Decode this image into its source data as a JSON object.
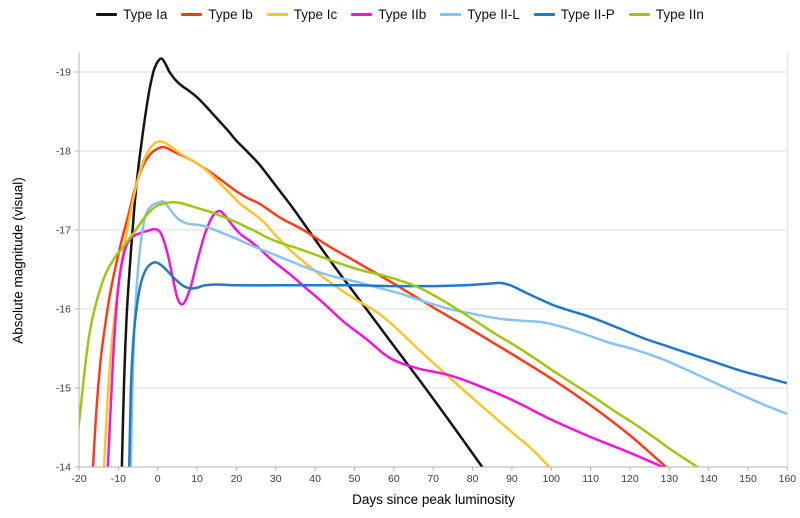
{
  "chart_data": {
    "type": "line",
    "title": "",
    "xlabel": "Days since peak luminosity",
    "ylabel": "Absolute magnitude (visual)",
    "xlim": [
      -20,
      160
    ],
    "ylim_mag_bottom_to_top": [
      -14,
      -19
    ],
    "x_ticks": [
      -20,
      -10,
      0,
      10,
      20,
      30,
      40,
      50,
      60,
      70,
      80,
      90,
      100,
      110,
      120,
      130,
      140,
      150,
      160
    ],
    "y_ticks": [
      -19,
      -18,
      -17,
      -16,
      -15,
      -14
    ],
    "grid": "horizontal-only",
    "legend_position": "top-center",
    "colors": {
      "grid": "#dcdcdc",
      "axis": "#b3b3b3",
      "tick_label": "#3c3c3c",
      "background": "#ffffff"
    },
    "series": [
      {
        "name": "Type Ia",
        "color": "#141414",
        "points": [
          [
            -9.2,
            -13.8
          ],
          [
            -8.6,
            -15
          ],
          [
            -7.9,
            -15.9
          ],
          [
            -7,
            -16.6
          ],
          [
            -6,
            -17.25
          ],
          [
            -5,
            -17.75
          ],
          [
            -4,
            -18.15
          ],
          [
            -3,
            -18.5
          ],
          [
            -2,
            -18.8
          ],
          [
            -1,
            -19.02
          ],
          [
            0,
            -19.13
          ],
          [
            1,
            -19.17
          ],
          [
            2,
            -19.1
          ],
          [
            3,
            -19.0
          ],
          [
            4.5,
            -18.9
          ],
          [
            6,
            -18.83
          ],
          [
            8,
            -18.76
          ],
          [
            10,
            -18.68
          ],
          [
            12,
            -18.58
          ],
          [
            14,
            -18.47
          ],
          [
            16,
            -18.36
          ],
          [
            18,
            -18.25
          ],
          [
            20,
            -18.13
          ],
          [
            23,
            -17.98
          ],
          [
            26,
            -17.82
          ],
          [
            30,
            -17.56
          ],
          [
            34,
            -17.3
          ],
          [
            38,
            -17.02
          ],
          [
            44,
            -16.6
          ],
          [
            50,
            -16.2
          ],
          [
            56,
            -15.8
          ],
          [
            62,
            -15.4
          ],
          [
            68,
            -15.0
          ],
          [
            75,
            -14.52
          ],
          [
            83.2,
            -13.95
          ]
        ]
      },
      {
        "name": "Type Ib",
        "color": "#fa3c1e",
        "points": [
          [
            -16.6,
            -13.85
          ],
          [
            -15.6,
            -14.7
          ],
          [
            -14.5,
            -15.35
          ],
          [
            -13.2,
            -15.85
          ],
          [
            -12,
            -16.22
          ],
          [
            -10.5,
            -16.58
          ],
          [
            -9,
            -16.9
          ],
          [
            -7.5,
            -17.18
          ],
          [
            -6,
            -17.48
          ],
          [
            -4.5,
            -17.72
          ],
          [
            -3,
            -17.88
          ],
          [
            -1.5,
            -17.98
          ],
          [
            0,
            -18.03
          ],
          [
            1.5,
            -18.05
          ],
          [
            3,
            -18.02
          ],
          [
            5,
            -17.97
          ],
          [
            8,
            -17.9
          ],
          [
            11,
            -17.81
          ],
          [
            14,
            -17.71
          ],
          [
            17,
            -17.6
          ],
          [
            20,
            -17.49
          ],
          [
            23,
            -17.4
          ],
          [
            26,
            -17.33
          ],
          [
            31,
            -17.16
          ],
          [
            37,
            -17.0
          ],
          [
            44,
            -16.78
          ],
          [
            50,
            -16.61
          ],
          [
            59,
            -16.35
          ],
          [
            70,
            -16.02
          ],
          [
            80,
            -15.73
          ],
          [
            90,
            -15.43
          ],
          [
            100,
            -15.12
          ],
          [
            110,
            -14.78
          ],
          [
            120,
            -14.4
          ],
          [
            130.3,
            -13.95
          ]
        ]
      },
      {
        "name": "Type Ic",
        "color": "#fcc32b",
        "points": [
          [
            -13.8,
            -13.85
          ],
          [
            -13,
            -14.6
          ],
          [
            -12.2,
            -15.25
          ],
          [
            -11.2,
            -15.8
          ],
          [
            -10,
            -16.3
          ],
          [
            -8.5,
            -16.8
          ],
          [
            -7,
            -17.2
          ],
          [
            -5.5,
            -17.55
          ],
          [
            -4,
            -17.82
          ],
          [
            -2.5,
            -17.99
          ],
          [
            -1,
            -18.09
          ],
          [
            0.5,
            -18.12
          ],
          [
            2,
            -18.1
          ],
          [
            4,
            -18.03
          ],
          [
            6,
            -17.96
          ],
          [
            8,
            -17.9
          ],
          [
            10,
            -17.84
          ],
          [
            12,
            -17.77
          ],
          [
            14,
            -17.68
          ],
          [
            16,
            -17.58
          ],
          [
            18,
            -17.48
          ],
          [
            21,
            -17.33
          ],
          [
            24,
            -17.22
          ],
          [
            27,
            -17.1
          ],
          [
            30,
            -16.93
          ],
          [
            34,
            -16.73
          ],
          [
            39,
            -16.52
          ],
          [
            44,
            -16.33
          ],
          [
            50,
            -16.13
          ],
          [
            56,
            -15.95
          ],
          [
            61,
            -15.74
          ],
          [
            66,
            -15.5
          ],
          [
            72,
            -15.23
          ],
          [
            78,
            -14.96
          ],
          [
            84,
            -14.7
          ],
          [
            90,
            -14.44
          ],
          [
            95,
            -14.23
          ],
          [
            100.5,
            -13.95
          ]
        ]
      },
      {
        "name": "Type IIb",
        "color": "#f115d7",
        "points": [
          [
            -12.8,
            -13.85
          ],
          [
            -12.1,
            -14.6
          ],
          [
            -11.4,
            -15.3
          ],
          [
            -10.6,
            -15.95
          ],
          [
            -9.7,
            -16.4
          ],
          [
            -8.7,
            -16.68
          ],
          [
            -7.6,
            -16.84
          ],
          [
            -6.2,
            -16.92
          ],
          [
            -4.5,
            -16.96
          ],
          [
            -2.5,
            -16.99
          ],
          [
            -0.5,
            -17.01
          ],
          [
            1,
            -16.94
          ],
          [
            2.5,
            -16.7
          ],
          [
            3.8,
            -16.4
          ],
          [
            5,
            -16.14
          ],
          [
            6,
            -16.06
          ],
          [
            7,
            -16.1
          ],
          [
            8.5,
            -16.3
          ],
          [
            10,
            -16.6
          ],
          [
            12,
            -16.95
          ],
          [
            13.8,
            -17.16
          ],
          [
            15.5,
            -17.24
          ],
          [
            17,
            -17.19
          ],
          [
            19,
            -17.06
          ],
          [
            21,
            -16.95
          ],
          [
            23.5,
            -16.86
          ],
          [
            26,
            -16.76
          ],
          [
            29,
            -16.62
          ],
          [
            33.6,
            -16.44
          ],
          [
            38,
            -16.25
          ],
          [
            42,
            -16.08
          ],
          [
            47,
            -15.85
          ],
          [
            53,
            -15.62
          ],
          [
            59,
            -15.38
          ],
          [
            66,
            -15.25
          ],
          [
            73.5,
            -15.17
          ],
          [
            80,
            -15.06
          ],
          [
            90,
            -14.85
          ],
          [
            100,
            -14.6
          ],
          [
            110,
            -14.38
          ],
          [
            120,
            -14.18
          ],
          [
            129.7,
            -13.97
          ]
        ]
      },
      {
        "name": "Type II-L",
        "color": "#87c3f2",
        "points": [
          [
            -6.9,
            -13.85
          ],
          [
            -6.4,
            -15
          ],
          [
            -5.8,
            -15.9
          ],
          [
            -5,
            -16.5
          ],
          [
            -4,
            -16.95
          ],
          [
            -3,
            -17.2
          ],
          [
            -1.5,
            -17.31
          ],
          [
            0,
            -17.34
          ],
          [
            1.5,
            -17.36
          ],
          [
            3,
            -17.27
          ],
          [
            5,
            -17.15
          ],
          [
            7,
            -17.09
          ],
          [
            9,
            -17.07
          ],
          [
            11,
            -17.06
          ],
          [
            13,
            -17.03
          ],
          [
            16,
            -16.97
          ],
          [
            20,
            -16.89
          ],
          [
            24,
            -16.8
          ],
          [
            28,
            -16.72
          ],
          [
            33,
            -16.62
          ],
          [
            38,
            -16.52
          ],
          [
            44,
            -16.42
          ],
          [
            50,
            -16.35
          ],
          [
            56,
            -16.27
          ],
          [
            62,
            -16.19
          ],
          [
            68,
            -16.09
          ],
          [
            75,
            -15.99
          ],
          [
            80,
            -15.94
          ],
          [
            84,
            -15.9
          ],
          [
            88,
            -15.87
          ],
          [
            93,
            -15.85
          ],
          [
            98,
            -15.83
          ],
          [
            103,
            -15.77
          ],
          [
            108,
            -15.69
          ],
          [
            115,
            -15.57
          ],
          [
            121,
            -15.49
          ],
          [
            128,
            -15.37
          ],
          [
            134,
            -15.24
          ],
          [
            141,
            -15.08
          ],
          [
            148,
            -14.92
          ],
          [
            154,
            -14.79
          ],
          [
            160,
            -14.67
          ]
        ]
      },
      {
        "name": "Type II-P",
        "color": "#2479c4",
        "points": [
          [
            -7.3,
            -13.85
          ],
          [
            -6.8,
            -15
          ],
          [
            -6.2,
            -15.6
          ],
          [
            -5.4,
            -16.0
          ],
          [
            -4.4,
            -16.3
          ],
          [
            -3.2,
            -16.48
          ],
          [
            -2,
            -16.56
          ],
          [
            -0.5,
            -16.59
          ],
          [
            1,
            -16.55
          ],
          [
            2.5,
            -16.48
          ],
          [
            4,
            -16.4
          ],
          [
            5.5,
            -16.33
          ],
          [
            7,
            -16.28
          ],
          [
            8.5,
            -16.26
          ],
          [
            10,
            -16.27
          ],
          [
            12,
            -16.3
          ],
          [
            15,
            -16.31
          ],
          [
            20,
            -16.3
          ],
          [
            30,
            -16.3
          ],
          [
            40,
            -16.3
          ],
          [
            50,
            -16.3
          ],
          [
            60,
            -16.29
          ],
          [
            70,
            -16.29
          ],
          [
            78,
            -16.3
          ],
          [
            84,
            -16.32
          ],
          [
            87,
            -16.33
          ],
          [
            89,
            -16.31
          ],
          [
            91,
            -16.27
          ],
          [
            93,
            -16.22
          ],
          [
            96,
            -16.15
          ],
          [
            100,
            -16.06
          ],
          [
            104,
            -15.99
          ],
          [
            108,
            -15.93
          ],
          [
            112,
            -15.86
          ],
          [
            118,
            -15.74
          ],
          [
            124,
            -15.62
          ],
          [
            130,
            -15.52
          ],
          [
            136,
            -15.42
          ],
          [
            142,
            -15.32
          ],
          [
            148,
            -15.22
          ],
          [
            154,
            -15.14
          ],
          [
            160,
            -15.06
          ]
        ]
      },
      {
        "name": "Type IIn",
        "color": "#a2c511",
        "points": [
          [
            -20.3,
            -14.42
          ],
          [
            -19.3,
            -14.88
          ],
          [
            -18.5,
            -15.25
          ],
          [
            -17.6,
            -15.6
          ],
          [
            -16.6,
            -15.88
          ],
          [
            -15.5,
            -16.1
          ],
          [
            -14.3,
            -16.3
          ],
          [
            -13,
            -16.47
          ],
          [
            -11.8,
            -16.58
          ],
          [
            -10.5,
            -16.68
          ],
          [
            -9,
            -16.77
          ],
          [
            -7.5,
            -16.87
          ],
          [
            -6,
            -16.97
          ],
          [
            -4.5,
            -17.08
          ],
          [
            -3,
            -17.18
          ],
          [
            -1.5,
            -17.26
          ],
          [
            0,
            -17.31
          ],
          [
            2,
            -17.34
          ],
          [
            4,
            -17.35
          ],
          [
            6,
            -17.34
          ],
          [
            8,
            -17.31
          ],
          [
            10,
            -17.28
          ],
          [
            12,
            -17.25
          ],
          [
            14,
            -17.22
          ],
          [
            16,
            -17.18
          ],
          [
            19,
            -17.12
          ],
          [
            22,
            -17.05
          ],
          [
            25,
            -16.98
          ],
          [
            28,
            -16.9
          ],
          [
            31,
            -16.84
          ],
          [
            36,
            -16.76
          ],
          [
            41,
            -16.67
          ],
          [
            46,
            -16.58
          ],
          [
            51,
            -16.5
          ],
          [
            56,
            -16.44
          ],
          [
            61,
            -16.37
          ],
          [
            66,
            -16.28
          ],
          [
            71,
            -16.15
          ],
          [
            76,
            -16.0
          ],
          [
            81,
            -15.84
          ],
          [
            86,
            -15.68
          ],
          [
            91,
            -15.53
          ],
          [
            96,
            -15.37
          ],
          [
            101,
            -15.2
          ],
          [
            106,
            -15.04
          ],
          [
            111,
            -14.88
          ],
          [
            116,
            -14.71
          ],
          [
            121,
            -14.55
          ],
          [
            126,
            -14.38
          ],
          [
            131,
            -14.2
          ],
          [
            138.7,
            -13.95
          ]
        ]
      }
    ]
  }
}
